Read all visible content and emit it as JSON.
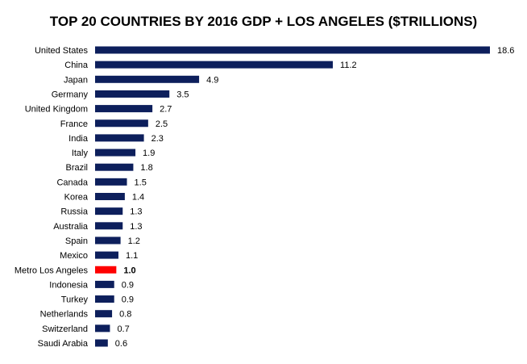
{
  "chart_data": {
    "type": "bar",
    "orientation": "horizontal",
    "title": "TOP 20 COUNTRIES BY 2016 GDP + LOS ANGELES ($TRILLIONS)",
    "categories": [
      "United States",
      "China",
      "Japan",
      "Germany",
      "United Kingdom",
      "France",
      "India",
      "Italy",
      "Brazil",
      "Canada",
      "Korea",
      "Russia",
      "Australia",
      "Spain",
      "Mexico",
      "Metro Los Angeles",
      "Indonesia",
      "Turkey",
      "Netherlands",
      "Switzerland",
      "Saudi Arabia"
    ],
    "values": [
      18.6,
      11.2,
      4.9,
      3.5,
      2.7,
      2.5,
      2.3,
      1.9,
      1.8,
      1.5,
      1.4,
      1.3,
      1.3,
      1.2,
      1.1,
      1.0,
      0.9,
      0.9,
      0.8,
      0.7,
      0.6
    ],
    "value_labels": [
      "18.6",
      "11.2",
      "4.9",
      "3.5",
      "2.7",
      "2.5",
      "2.3",
      "1.9",
      "1.8",
      "1.5",
      "1.4",
      "1.3",
      "1.3",
      "1.2",
      "1.1",
      "1.0",
      "0.9",
      "0.9",
      "0.8",
      "0.7",
      "0.6"
    ],
    "highlight": "Metro Los Angeles",
    "xlim": [
      0,
      18.6
    ],
    "grid": false,
    "colors": {
      "bar": "#0D1F5C",
      "highlight_bar": "#FF0000",
      "highlight_label": "#CC0000"
    }
  }
}
